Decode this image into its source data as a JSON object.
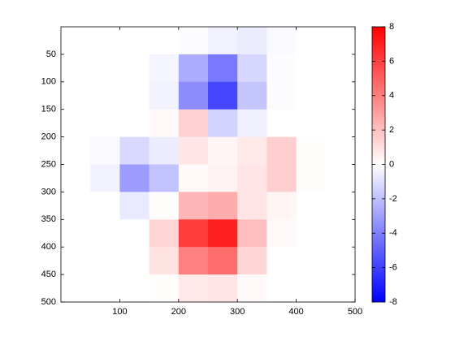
{
  "chart_data": {
    "type": "heatmap",
    "x": [
      25,
      75,
      125,
      175,
      225,
      275,
      325,
      375,
      425,
      475
    ],
    "y": [
      25,
      75,
      125,
      175,
      225,
      275,
      325,
      375,
      425,
      475
    ],
    "z": [
      [
        0,
        0,
        0,
        0,
        -0.1,
        -0.4,
        -0.6,
        -0.2,
        0,
        0
      ],
      [
        0,
        0,
        0,
        -0.3,
        -2.6,
        -4.2,
        -1.3,
        -0.1,
        0,
        0
      ],
      [
        0,
        0,
        0,
        -0.4,
        -3.6,
        -5.8,
        -1.8,
        -0.1,
        0,
        0
      ],
      [
        0,
        0,
        0,
        0.2,
        1.4,
        -1.4,
        -0.5,
        0,
        0,
        0
      ],
      [
        0,
        -0.2,
        -1.2,
        -0.6,
        0.8,
        0.3,
        0.7,
        1.5,
        0.1,
        0
      ],
      [
        0,
        -0.4,
        -3.1,
        -1.9,
        0.2,
        0.4,
        0.8,
        1.5,
        0.1,
        0
      ],
      [
        0,
        0,
        -0.7,
        0.1,
        2.3,
        2.6,
        0.8,
        0.3,
        0,
        0
      ],
      [
        0,
        0,
        0,
        1.3,
        6.1,
        7.0,
        2.0,
        0.2,
        0,
        0
      ],
      [
        0,
        0,
        0,
        0.9,
        4.0,
        4.6,
        1.3,
        0,
        0,
        0
      ],
      [
        0,
        0,
        0,
        0.1,
        0.7,
        0.8,
        0.2,
        0,
        0,
        0
      ]
    ],
    "xlim": [
      0,
      500
    ],
    "ylim": [
      0,
      500
    ],
    "y_reversed": true,
    "xticks": [
      100,
      200,
      300,
      400,
      500
    ],
    "yticks": [
      50,
      100,
      150,
      200,
      250,
      300,
      350,
      400,
      450,
      500
    ],
    "clim": [
      -8,
      8
    ],
    "cticks": [
      -8,
      -6,
      -4,
      -2,
      0,
      2,
      4,
      6,
      8
    ],
    "colors": {
      "low": "#0000ff",
      "mid": "#ffffff",
      "high": "#ff0000"
    }
  }
}
